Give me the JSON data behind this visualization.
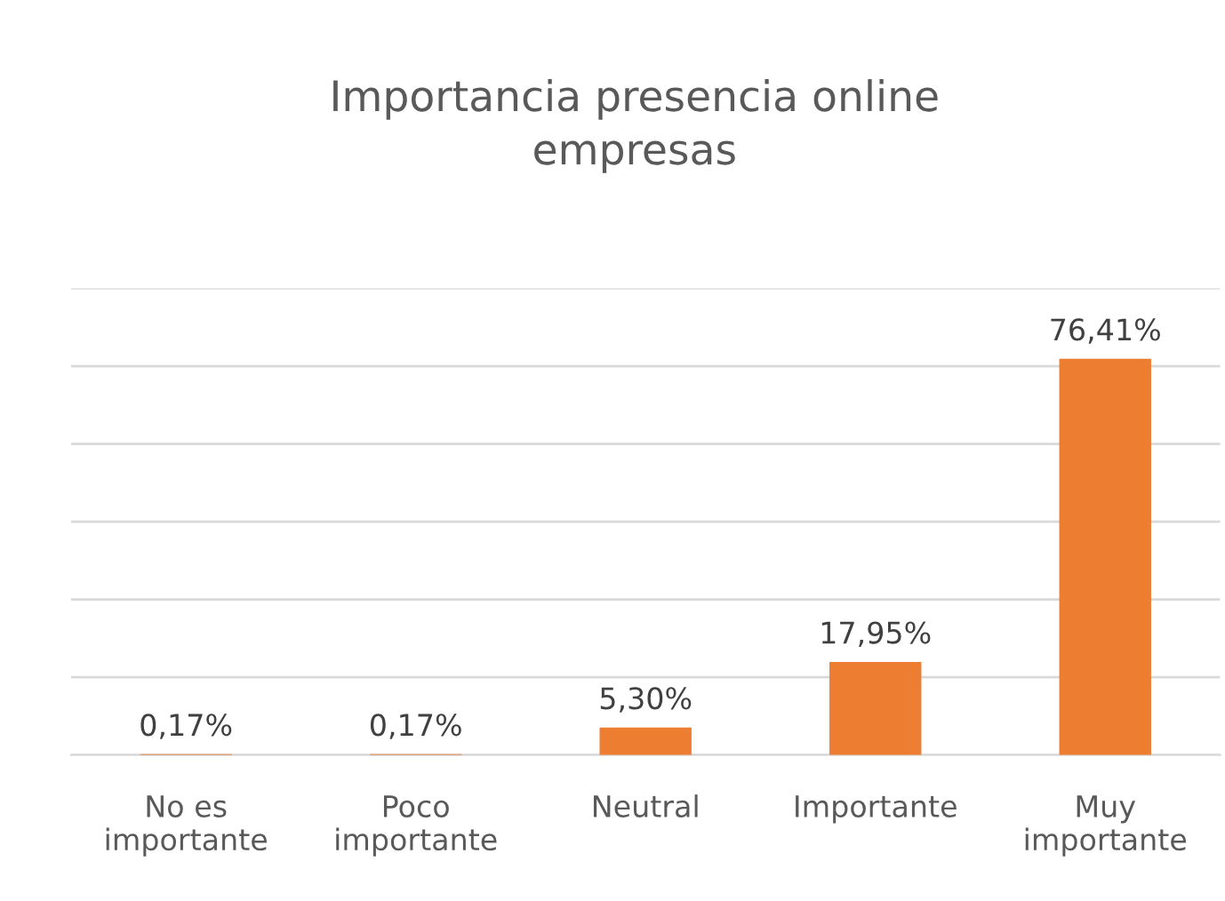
{
  "chart_data": {
    "type": "bar",
    "title": "Importancia presencia online empresas",
    "categories": [
      "No es importante",
      "Poco importante",
      "Neutral",
      "Importante",
      "Muy importante"
    ],
    "values": [
      0.17,
      0.17,
      5.3,
      17.95,
      76.41
    ],
    "value_labels": [
      "0,17%",
      "0,17%",
      "5,30%",
      "17,95%",
      "76,41%"
    ],
    "color": "#ed7d31",
    "ylim": [
      0,
      90
    ],
    "yticks": [
      {
        "value": 0,
        "label": null
      },
      {
        "value": 15,
        "label": null
      },
      {
        "value": 30,
        "label": null
      },
      {
        "value": 45,
        "label": null
      },
      {
        "value": 60,
        "label": null
      },
      {
        "value": 75,
        "label": null
      },
      {
        "value": 90,
        "label": null
      }
    ],
    "grid": "y",
    "tick_labels": "x",
    "legend": false
  }
}
